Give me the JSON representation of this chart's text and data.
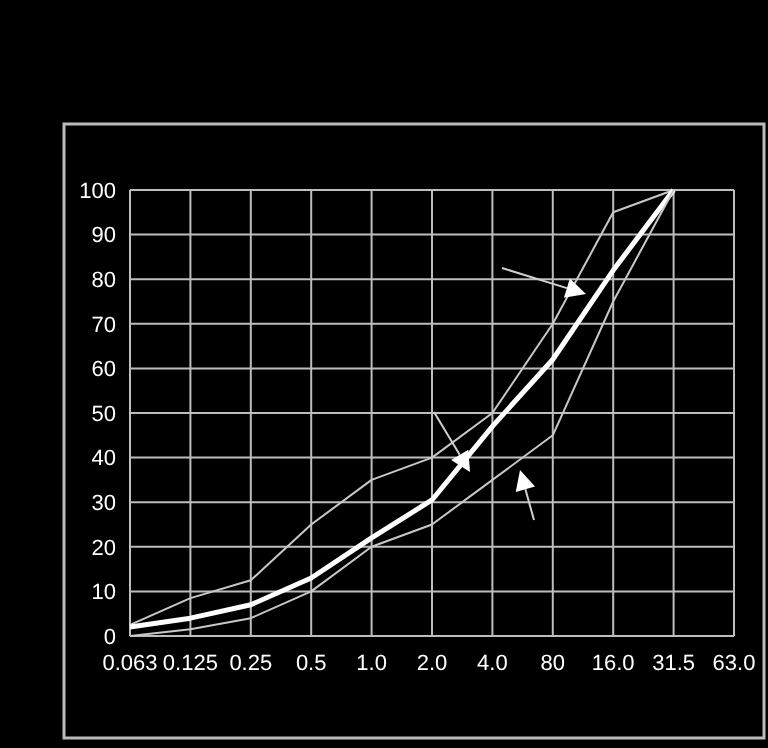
{
  "chart_data": {
    "type": "line",
    "categories": [
      "0.063",
      "0.125",
      "0.25",
      "0.5",
      "1.0",
      "2.0",
      "4.0",
      "80",
      "16.0",
      "31.5",
      "63.0"
    ],
    "series": [
      {
        "color": "#c8c8c8",
        "values": [
          2.5,
          8.5,
          12.5,
          25,
          35,
          40,
          50,
          70,
          95,
          100,
          null
        ]
      },
      {
        "color": "#ffffff",
        "values": [
          2,
          4,
          7,
          13,
          22,
          30.5,
          47,
          62,
          82,
          100,
          null
        ]
      },
      {
        "color": "#c8c8c8",
        "values": [
          0,
          1.5,
          4,
          10,
          20,
          25,
          35,
          45,
          75,
          100,
          null
        ]
      }
    ],
    "ylim": [
      0,
      100
    ],
    "yticks": [
      0,
      10,
      20,
      30,
      40,
      50,
      60,
      70,
      80,
      90,
      100
    ],
    "grid": true,
    "marker": "none",
    "line_style": "solid"
  }
}
